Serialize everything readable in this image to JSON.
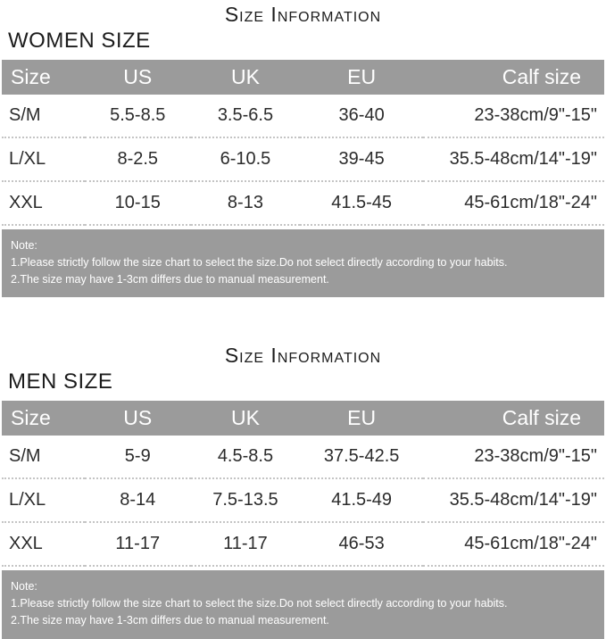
{
  "colors": {
    "header_bg": "#9b9b9b",
    "note_bg": "#9b9b9b",
    "header_text": "#ffffff",
    "body_text": "#2b2b2b",
    "divider_dotted": "#c4c4c4",
    "page_bg": "#ffffff"
  },
  "chart_data": [
    {
      "type": "table",
      "title": "Size Information",
      "subtitle": "WOMEN SIZE",
      "columns": [
        "Size",
        "US",
        "UK",
        "EU",
        "Calf size"
      ],
      "rows": [
        [
          "S/M",
          "5.5-8.5",
          "3.5-6.5",
          "36-40",
          "23-38cm/9\"-15\""
        ],
        [
          "L/XL",
          "8-2.5",
          "6-10.5",
          "39-45",
          "35.5-48cm/14\"-19\""
        ],
        [
          "XXL",
          "10-15",
          "8-13",
          "41.5-45",
          "45-61cm/18\"-24\""
        ]
      ],
      "note": {
        "heading": "Note:",
        "lines": [
          "1.Please strictly follow the size chart to select the size.Do not select directly according to your habits.",
          "2.The size may have 1-3cm differs due to manual measurement."
        ]
      }
    },
    {
      "type": "table",
      "title": "Size Information",
      "subtitle": "MEN SIZE",
      "columns": [
        "Size",
        "US",
        "UK",
        "EU",
        "Calf size"
      ],
      "rows": [
        [
          "S/M",
          "5-9",
          "4.5-8.5",
          "37.5-42.5",
          "23-38cm/9\"-15\""
        ],
        [
          "L/XL",
          "8-14",
          "7.5-13.5",
          "41.5-49",
          "35.5-48cm/14\"-19\""
        ],
        [
          "XXL",
          "11-17",
          "11-17",
          "46-53",
          "45-61cm/18\"-24\""
        ]
      ],
      "note": {
        "heading": "Note:",
        "lines": [
          "1.Please strictly follow the size chart to select the size.Do not select directly according to your habits.",
          "2.The size may have 1-3cm differs due to manual measurement."
        ]
      }
    }
  ]
}
